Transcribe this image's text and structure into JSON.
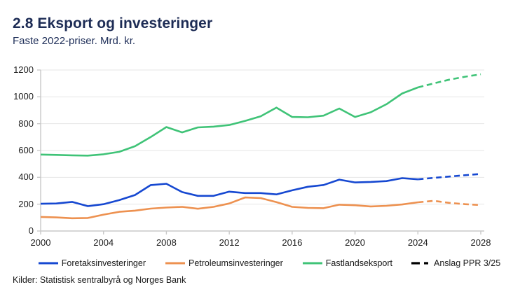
{
  "header": {
    "title": "2.8 Eksport og investeringer",
    "subtitle": "Faste 2022-priser. Mrd. kr."
  },
  "source": "Kilder: Statistisk sentralbyrå og Norges Bank",
  "colors": {
    "title_navy": "#1d2c55",
    "grid": "#e6e6e6",
    "axis": "#c9c9c9",
    "tick_text": "#1a1a1a"
  },
  "chart_data": {
    "type": "line",
    "title": "2.8 Eksport og investeringer",
    "subtitle": "Faste 2022-priser. Mrd. kr.",
    "xlabel": "",
    "ylabel": "",
    "xlim": [
      2000,
      2028
    ],
    "ylim": [
      0,
      1200
    ],
    "xticks": [
      2000,
      2004,
      2008,
      2012,
      2016,
      2020,
      2024,
      2028
    ],
    "yticks": [
      0,
      200,
      400,
      600,
      800,
      1000,
      1200
    ],
    "grid": "horizontal",
    "legend_position": "bottom",
    "x": [
      2000,
      2001,
      2002,
      2003,
      2004,
      2005,
      2006,
      2007,
      2008,
      2009,
      2010,
      2011,
      2012,
      2013,
      2014,
      2015,
      2016,
      2017,
      2018,
      2019,
      2020,
      2021,
      2022,
      2023,
      2024
    ],
    "forecast_x": [
      2024,
      2025,
      2026,
      2027,
      2028
    ],
    "series": [
      {
        "name": "Foretaksinvesteringer",
        "color": "#1648d1",
        "values": [
          203,
          205,
          217,
          185,
          200,
          230,
          268,
          342,
          352,
          290,
          262,
          262,
          293,
          283,
          283,
          273,
          303,
          330,
          343,
          383,
          362,
          366,
          372,
          394,
          385
        ],
        "forecast": [
          385,
          396,
          406,
          416,
          425
        ]
      },
      {
        "name": "Petroleumsinvesteringer",
        "color": "#ed9150",
        "values": [
          105,
          101,
          95,
          97,
          122,
          143,
          152,
          167,
          175,
          180,
          166,
          180,
          205,
          250,
          245,
          215,
          180,
          172,
          170,
          196,
          192,
          183,
          188,
          198,
          214
        ],
        "forecast": [
          214,
          225,
          210,
          200,
          193
        ]
      },
      {
        "name": "Fastlandseksport",
        "color": "#3fc377",
        "values": [
          570,
          567,
          564,
          562,
          572,
          590,
          632,
          700,
          775,
          735,
          772,
          778,
          790,
          820,
          855,
          920,
          850,
          848,
          860,
          913,
          850,
          885,
          945,
          1025,
          1070
        ],
        "forecast": [
          1070,
          1100,
          1128,
          1150,
          1168
        ]
      }
    ],
    "forecast_style": {
      "label": "Anslag PPR 3/25",
      "color": "#000000",
      "dashed": true
    }
  }
}
